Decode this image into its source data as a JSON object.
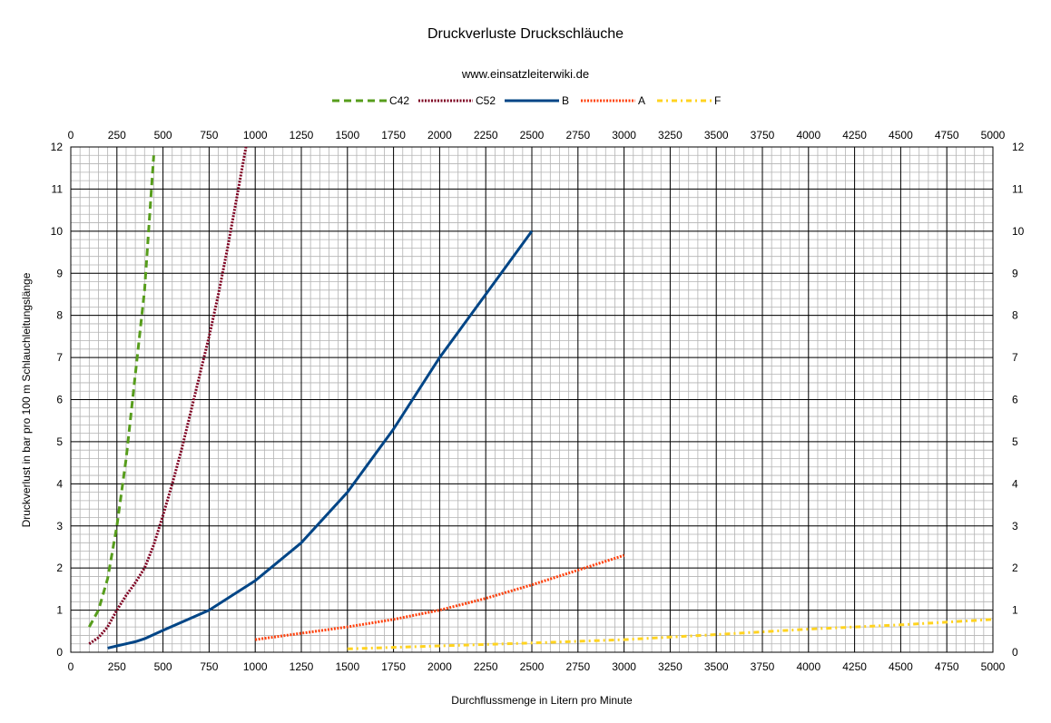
{
  "chart_data": {
    "type": "line",
    "title": "Druckverluste Druckschläuche",
    "subtitle": "www.einsatzleiterwiki.de",
    "xlabel": "Durchflussmenge in Litern pro Minute",
    "ylabel": "Druckverlust in bar pro 100 m Schlauchleitungslänge",
    "xlim": [
      0,
      5000
    ],
    "ylim": [
      0,
      12
    ],
    "x_major_step": 250,
    "x_minor_step": 50,
    "y_major_step": 1,
    "y_minor_step": 0.2,
    "grid": true,
    "secondary_axes": [
      "top",
      "right"
    ],
    "legend": "top-center",
    "x_ticks": [
      "0",
      "250",
      "500",
      "750",
      "1000",
      "1250",
      "1500",
      "1750",
      "2000",
      "2250",
      "2500",
      "2750",
      "3000",
      "3250",
      "3500",
      "3750",
      "4000",
      "4250",
      "4500",
      "4750",
      "5000"
    ],
    "y_ticks": [
      "0",
      "1",
      "2",
      "3",
      "4",
      "5",
      "6",
      "7",
      "8",
      "9",
      "10",
      "11",
      "12"
    ],
    "series": [
      {
        "name": "C42",
        "color": "#579d1c",
        "style": "dashed",
        "points": [
          [
            100,
            0.6
          ],
          [
            150,
            1.0
          ],
          [
            200,
            1.75
          ],
          [
            250,
            3.0
          ],
          [
            300,
            4.6
          ],
          [
            350,
            6.6
          ],
          [
            400,
            8.6
          ],
          [
            450,
            11.8
          ]
        ]
      },
      {
        "name": "C52",
        "color": "#7e0021",
        "style": "dotted",
        "points": [
          [
            100,
            0.2
          ],
          [
            150,
            0.35
          ],
          [
            200,
            0.6
          ],
          [
            250,
            1.0
          ],
          [
            300,
            1.35
          ],
          [
            350,
            1.65
          ],
          [
            400,
            2.0
          ],
          [
            450,
            2.55
          ],
          [
            500,
            3.25
          ],
          [
            550,
            4.0
          ],
          [
            600,
            4.8
          ],
          [
            650,
            5.7
          ],
          [
            700,
            6.6
          ],
          [
            750,
            7.5
          ],
          [
            800,
            8.5
          ],
          [
            850,
            9.6
          ],
          [
            900,
            10.8
          ],
          [
            950,
            12.0
          ]
        ]
      },
      {
        "name": "B",
        "color": "#004586",
        "style": "solid",
        "points": [
          [
            200,
            0.1
          ],
          [
            250,
            0.15
          ],
          [
            300,
            0.2
          ],
          [
            350,
            0.25
          ],
          [
            400,
            0.32
          ],
          [
            450,
            0.42
          ],
          [
            500,
            0.52
          ],
          [
            750,
            1.0
          ],
          [
            1000,
            1.7
          ],
          [
            1250,
            2.6
          ],
          [
            1500,
            3.8
          ],
          [
            1750,
            5.3
          ],
          [
            2000,
            7.0
          ],
          [
            2250,
            8.5
          ],
          [
            2500,
            10.0
          ]
        ]
      },
      {
        "name": "A",
        "color": "#ff420e",
        "style": "dotted",
        "points": [
          [
            1000,
            0.3
          ],
          [
            1250,
            0.45
          ],
          [
            1500,
            0.6
          ],
          [
            1750,
            0.78
          ],
          [
            2000,
            1.0
          ],
          [
            2250,
            1.28
          ],
          [
            2500,
            1.6
          ],
          [
            2750,
            1.95
          ],
          [
            3000,
            2.3
          ]
        ]
      },
      {
        "name": "F",
        "color": "#ffd320",
        "style": "dashdot",
        "points": [
          [
            1500,
            0.08
          ],
          [
            2000,
            0.15
          ],
          [
            2500,
            0.22
          ],
          [
            3000,
            0.3
          ],
          [
            3500,
            0.42
          ],
          [
            4000,
            0.55
          ],
          [
            4500,
            0.65
          ],
          [
            5000,
            0.78
          ]
        ]
      }
    ]
  }
}
